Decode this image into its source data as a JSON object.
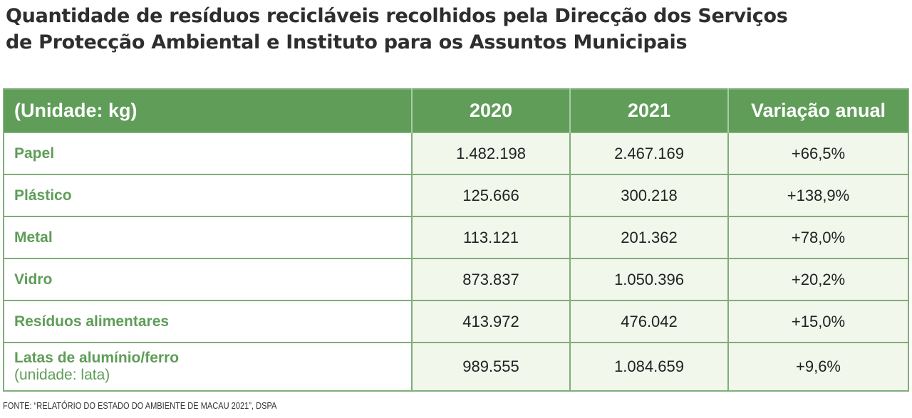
{
  "title_line1": "Quantidade de resíduos recicláveis recolhidos pela Direcção dos Serviços",
  "title_line2": "de Protecção Ambiental e Instituto para os Assuntos Municipais",
  "headers": [
    "(Unidade: kg)",
    "2020",
    "2021",
    "Variação anual"
  ],
  "rows": [
    {
      "label": "Papel",
      "y2020": "1.482.198",
      "y2021": "2.467.169",
      "change": "+66,5%"
    },
    {
      "label": "Plástico",
      "y2020": "125.666",
      "y2021": "300.218",
      "change": "+138,9%"
    },
    {
      "label": "Metal",
      "y2020": "113.121",
      "y2021": "201.362",
      "change": "+78,0%"
    },
    {
      "label": "Vidro",
      "y2020": "873.837",
      "y2021": "1.050.396",
      "change": "+20,2%"
    },
    {
      "label": "Resíduos alimentares",
      "y2020": "413.972",
      "y2021": "476.042",
      "change": "+15,0%"
    },
    {
      "label": "Latas de alumínio/ferro",
      "sublabel": "(unidade: lata)",
      "y2020": "989.555",
      "y2021": "1.084.659",
      "change": "+9,6%"
    }
  ],
  "source": "FONTE: “RELATÓRIO DO ESTADO DO AMBIENTE DE MACAU 2021”, DSPA"
}
